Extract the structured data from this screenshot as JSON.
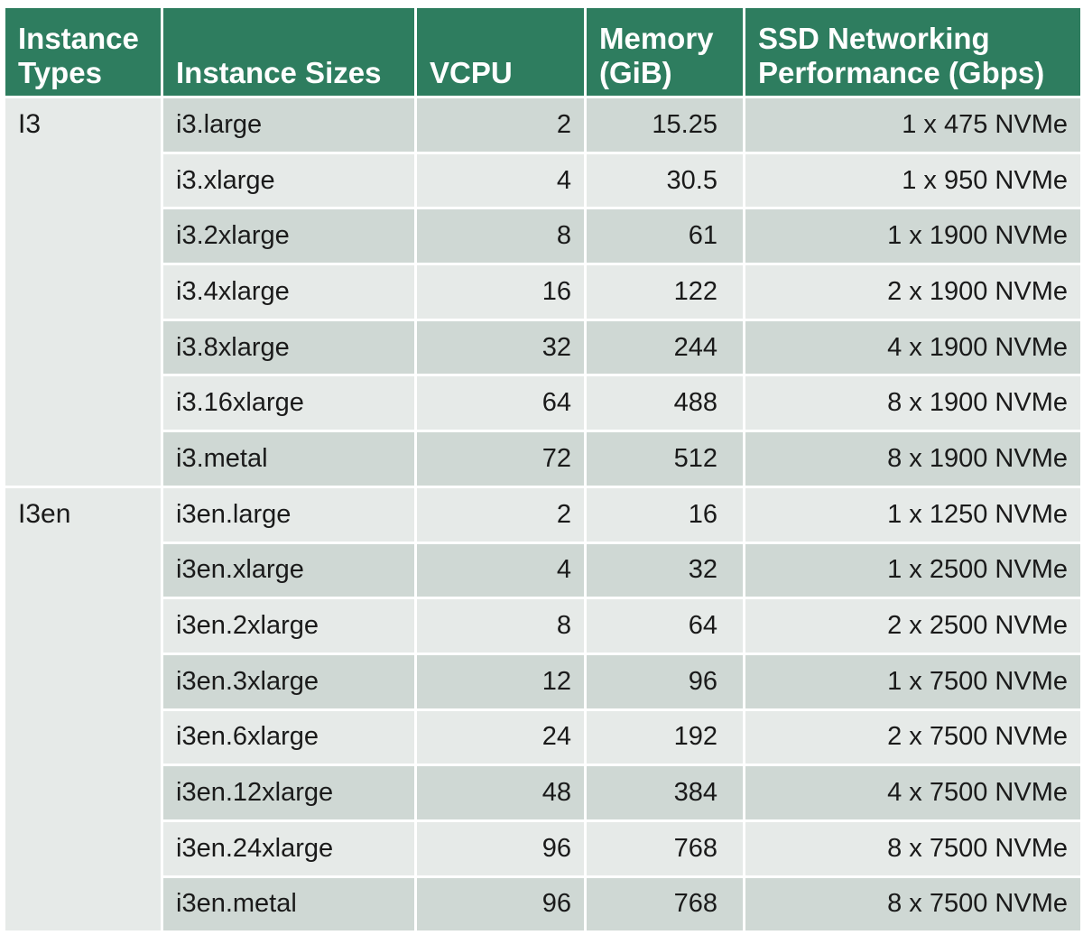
{
  "headers": {
    "instance_types": "Instance Types",
    "instance_sizes": "Instance Sizes",
    "vcpu": "VCPU",
    "memory": "Memory (GiB)",
    "ssd": "SSD Networking Performance (Gbps)"
  },
  "groups": [
    {
      "type": "I3",
      "rows": [
        {
          "size": "i3.large",
          "vcpu": "2",
          "memory": "15.25",
          "ssd": "1 x 475 NVMe"
        },
        {
          "size": "i3.xlarge",
          "vcpu": "4",
          "memory": "30.5",
          "ssd": "1 x 950 NVMe"
        },
        {
          "size": "i3.2xlarge",
          "vcpu": "8",
          "memory": "61",
          "ssd": "1 x 1900 NVMe"
        },
        {
          "size": "i3.4xlarge",
          "vcpu": "16",
          "memory": "122",
          "ssd": "2 x 1900 NVMe"
        },
        {
          "size": "i3.8xlarge",
          "vcpu": "32",
          "memory": "244",
          "ssd": "4 x 1900 NVMe"
        },
        {
          "size": "i3.16xlarge",
          "vcpu": "64",
          "memory": "488",
          "ssd": "8 x 1900 NVMe"
        },
        {
          "size": "i3.metal",
          "vcpu": "72",
          "memory": "512",
          "ssd": "8 x 1900 NVMe"
        }
      ]
    },
    {
      "type": "I3en",
      "rows": [
        {
          "size": "i3en.large",
          "vcpu": "2",
          "memory": "16",
          "ssd": "1 x 1250 NVMe"
        },
        {
          "size": "i3en.xlarge",
          "vcpu": "4",
          "memory": "32",
          "ssd": "1 x 2500 NVMe"
        },
        {
          "size": "i3en.2xlarge",
          "vcpu": "8",
          "memory": "64",
          "ssd": "2 x 2500 NVMe"
        },
        {
          "size": "i3en.3xlarge",
          "vcpu": "12",
          "memory": "96",
          "ssd": "1 x 7500 NVMe"
        },
        {
          "size": "i3en.6xlarge",
          "vcpu": "24",
          "memory": "192",
          "ssd": "2 x 7500 NVMe"
        },
        {
          "size": "i3en.12xlarge",
          "vcpu": "48",
          "memory": "384",
          "ssd": "4 x 7500 NVMe"
        },
        {
          "size": "i3en.24xlarge",
          "vcpu": "96",
          "memory": "768",
          "ssd": "8 x 7500 NVMe"
        },
        {
          "size": "i3en.metal",
          "vcpu": "96",
          "memory": "768",
          "ssd": "8 x 7500 NVMe"
        }
      ]
    }
  ],
  "colors": {
    "header_bg": "#2e7d5f",
    "row_dark": "#cfd8d4",
    "row_light": "#e6eae8"
  }
}
